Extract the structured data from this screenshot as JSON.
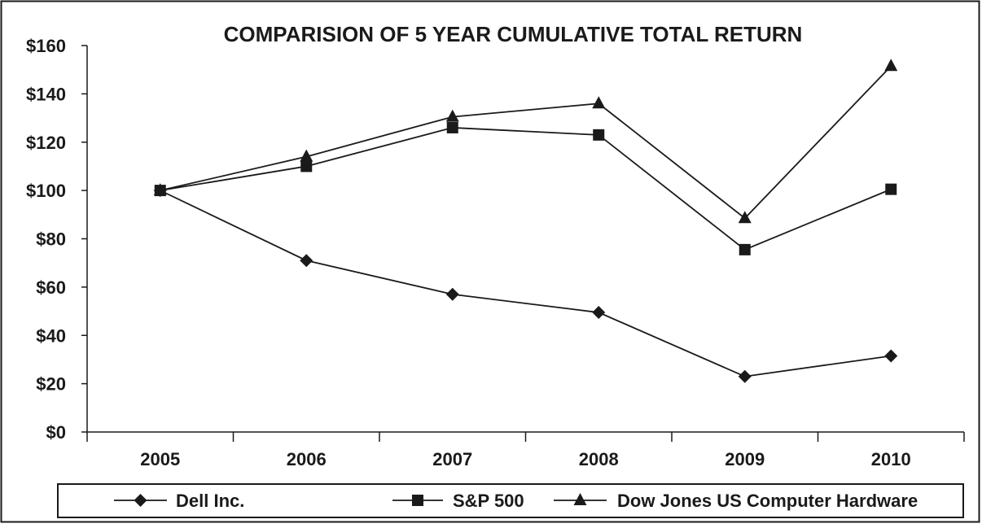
{
  "chart_data": {
    "type": "line",
    "title": "COMPARISION OF 5 YEAR CUMULATIVE TOTAL RETURN",
    "xlabel": "",
    "ylabel": "",
    "categories": [
      "2005",
      "2006",
      "2007",
      "2008",
      "2009",
      "2010"
    ],
    "ylim": [
      0,
      160
    ],
    "yticks": [
      "$0",
      "$20",
      "$40",
      "$60",
      "$80",
      "$100",
      "$120",
      "$140",
      "$160"
    ],
    "ytick_values": [
      0,
      20,
      40,
      60,
      80,
      100,
      120,
      140,
      160
    ],
    "grid": false,
    "legend_position": "bottom",
    "series": [
      {
        "name": "Dell Inc.",
        "marker": "diamond",
        "color": "#1a1a1a",
        "values": [
          100,
          71,
          57,
          49.5,
          23,
          31.5
        ]
      },
      {
        "name": "S&P 500",
        "marker": "square",
        "color": "#1a1a1a",
        "values": [
          100,
          110,
          126,
          123,
          75.5,
          100.5
        ]
      },
      {
        "name": "Dow Jones US Computer Hardware",
        "marker": "triangle",
        "color": "#1a1a1a",
        "values": [
          100,
          114,
          130.5,
          136,
          88.5,
          151.5
        ]
      }
    ]
  }
}
